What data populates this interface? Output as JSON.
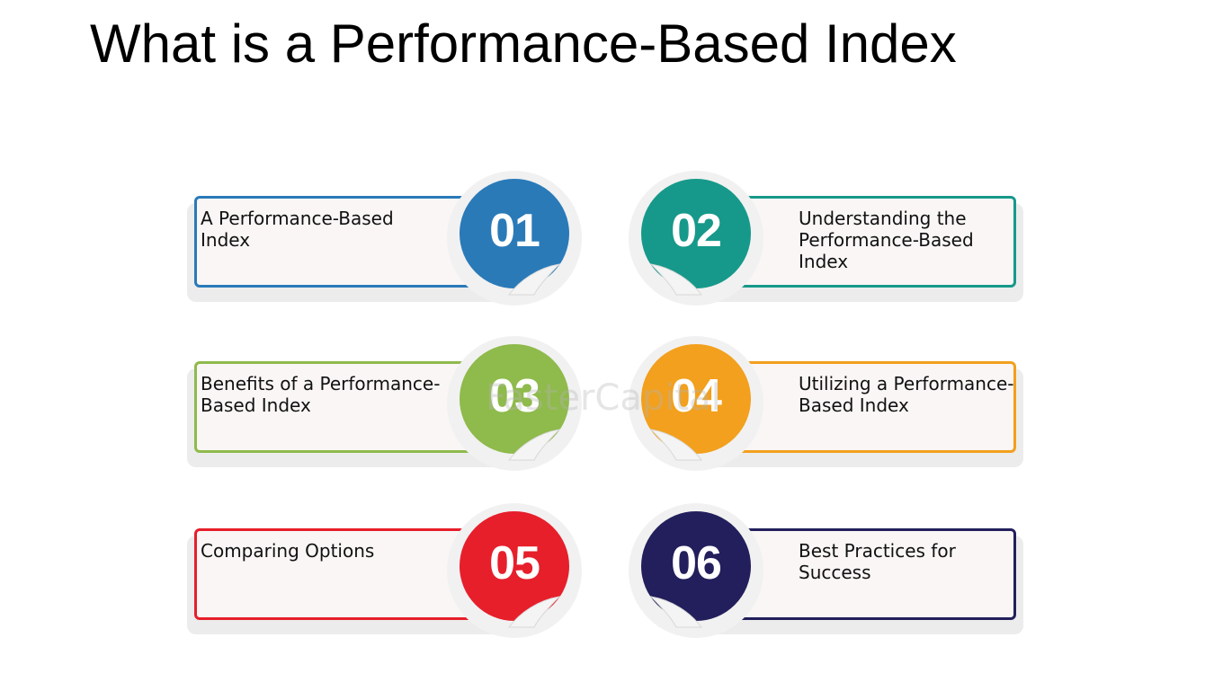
{
  "title": "What is a Performance-Based Index",
  "items": [
    {
      "number": "01",
      "text": "A Performance-Based Index",
      "color": "#2a7ab8",
      "side": "left"
    },
    {
      "number": "02",
      "text": "Understanding the Performance-Based Index",
      "color": "#16998a",
      "side": "right"
    },
    {
      "number": "03",
      "text": "Benefits of a Performance-Based Index",
      "color": "#8fba4c",
      "side": "left"
    },
    {
      "number": "04",
      "text": "Utilizing a Performance-Based Index",
      "color": "#f2a01d",
      "side": "right"
    },
    {
      "number": "05",
      "text": "Comparing Options",
      "color": "#e61f2b",
      "side": "left"
    },
    {
      "number": "06",
      "text": "Best Practices for Success",
      "color": "#231f5c",
      "side": "right"
    }
  ],
  "watermark": "FasterCapital"
}
